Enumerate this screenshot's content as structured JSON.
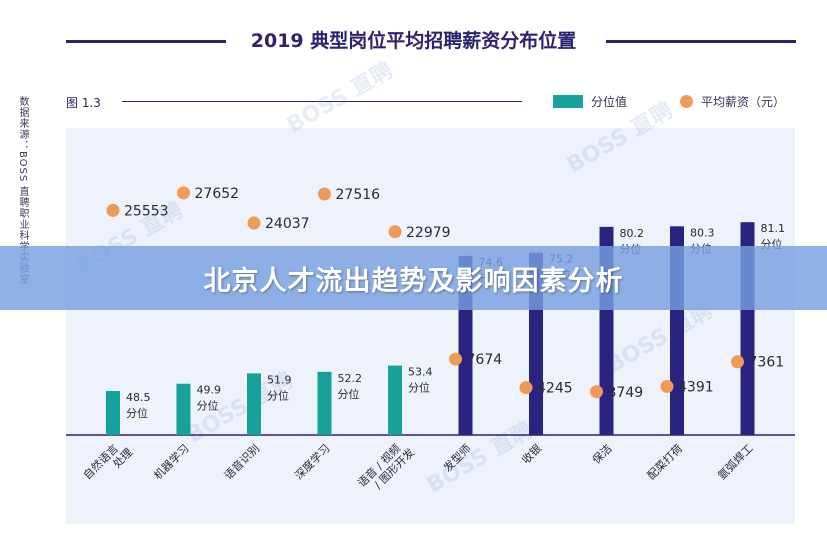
{
  "header": {
    "title": "2019 典型岗位平均招聘薪资分布位置"
  },
  "source_note": "数据来源：BOSS 直聘职业科学实验室",
  "figure_label": "图 1.3",
  "legend": {
    "percentile_label": "分位值",
    "salary_label": "平均薪资（元）"
  },
  "watermark_text": "BOSS 直聘",
  "banner": {
    "text": "北京人才流出趋势及影响因素分析"
  },
  "colors": {
    "teal": "#16a29a",
    "navy": "#2a2380",
    "orange": "#ef9a57",
    "header": "#2b2370"
  },
  "chart_data": {
    "type": "bar",
    "title": "2019 典型岗位平均招聘薪资分布位置",
    "categories": [
      "自然语言处理",
      "机器学习",
      "语音识别",
      "深度学习",
      "语音 / 视频 / 图形开发",
      "发型师",
      "收银",
      "保洁",
      "配菜打荷",
      "氩弧焊工"
    ],
    "category_lines": [
      [
        "自然语言",
        "处理"
      ],
      [
        "机器学习"
      ],
      [
        "语音识别"
      ],
      [
        "深度学习"
      ],
      [
        "语音 / 视频",
        "/ 图形开发"
      ],
      [
        "发型师"
      ],
      [
        "收银"
      ],
      [
        "保洁"
      ],
      [
        "配菜打荷"
      ],
      [
        "氩弧焊工"
      ]
    ],
    "series": [
      {
        "name": "分位值",
        "values": [
          48.5,
          49.9,
          51.9,
          52.2,
          53.4,
          74.6,
          75.2,
          80.2,
          80.3,
          81.1
        ],
        "value_labels": [
          "48.5",
          "49.9",
          "51.9",
          "52.2",
          "53.4",
          "74.6",
          "75.2",
          "80.2",
          "80.3",
          "81.1"
        ],
        "unit_label": "分位",
        "colors": [
          "#16a29a",
          "#16a29a",
          "#16a29a",
          "#16a29a",
          "#16a29a",
          "#2a2380",
          "#2a2380",
          "#2a2380",
          "#2a2380",
          "#2a2380"
        ]
      },
      {
        "name": "平均薪资（元）",
        "values": [
          25553,
          27652,
          24037,
          27516,
          22979,
          7674,
          4245,
          3749,
          4391,
          7361
        ],
        "value_labels": [
          "25553",
          "27652",
          "24037",
          "27516",
          "22979",
          "7674",
          "4245",
          "3749",
          "4391",
          "7361"
        ]
      }
    ],
    "xlabel": "",
    "ylabel": "",
    "ylim": [
      0,
      100
    ]
  }
}
